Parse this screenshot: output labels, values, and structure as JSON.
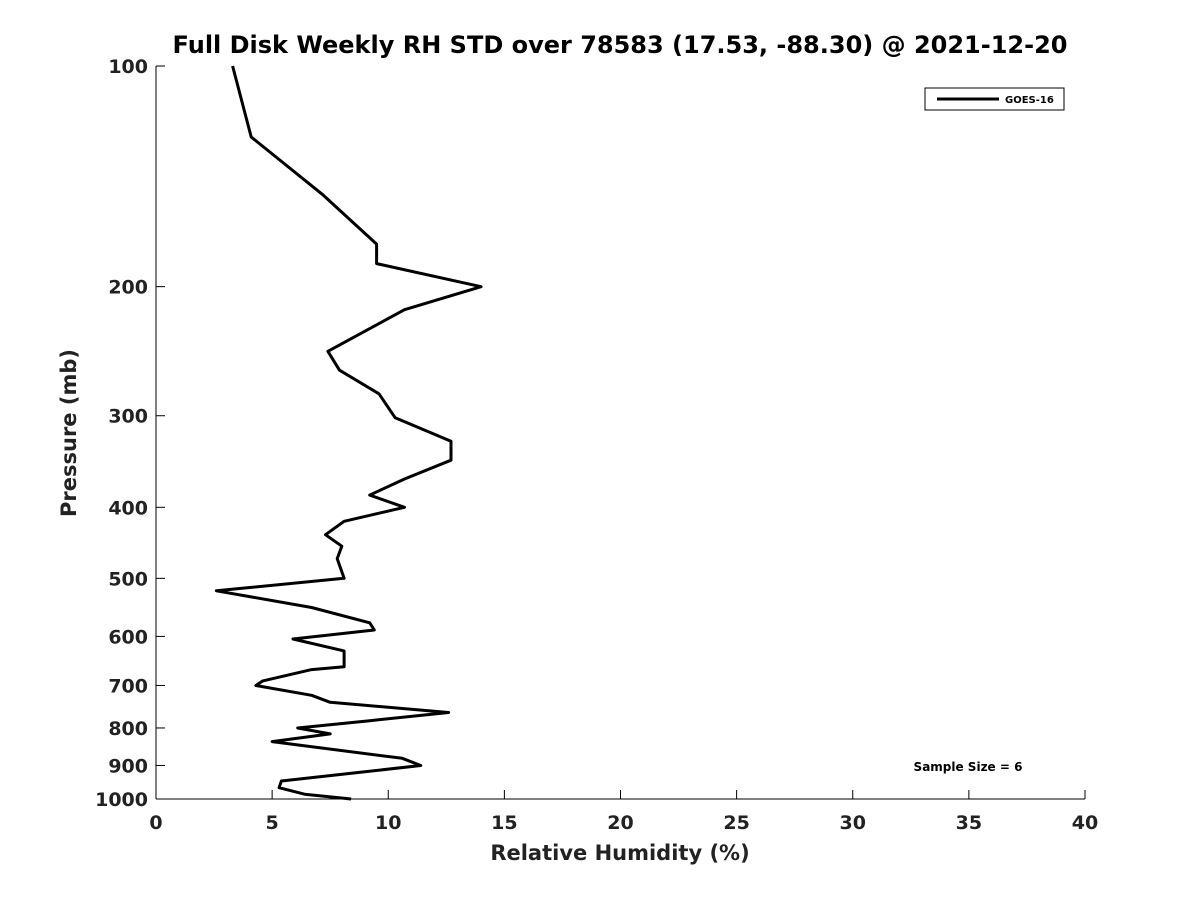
{
  "chart_data": {
    "type": "line",
    "title": "Full Disk Weekly RH STD over 78583 (17.53, -88.30) @ 2021-12-20",
    "xlabel": "Relative Humidity (%)",
    "ylabel": "Pressure (mb)",
    "xlim": [
      0,
      40
    ],
    "ylim": [
      100,
      1000
    ],
    "y_scale": "log",
    "y_reversed": true,
    "grid": false,
    "legend_position": "top-right",
    "x_ticks": [
      "0",
      "5",
      "10",
      "15",
      "20",
      "25",
      "30",
      "35",
      "40"
    ],
    "y_ticks": [
      "100",
      "200",
      "300",
      "400",
      "500",
      "600",
      "700",
      "800",
      "900",
      "1000"
    ],
    "annotation": "Sample Size = 6",
    "series": [
      {
        "name": "GOES-16",
        "color": "#000000",
        "points": [
          [
            3.3,
            100
          ],
          [
            4.1,
            125
          ],
          [
            7.2,
            150
          ],
          [
            9.5,
            175
          ],
          [
            9.5,
            186
          ],
          [
            14.0,
            200
          ],
          [
            10.7,
            215
          ],
          [
            7.4,
            245
          ],
          [
            7.9,
            260
          ],
          [
            9.6,
            280
          ],
          [
            10.3,
            302
          ],
          [
            12.7,
            325
          ],
          [
            12.7,
            345
          ],
          [
            10.7,
            366
          ],
          [
            9.2,
            385
          ],
          [
            10.7,
            400
          ],
          [
            8.1,
            418
          ],
          [
            7.3,
            436
          ],
          [
            8.0,
            452
          ],
          [
            7.8,
            470
          ],
          [
            8.1,
            500
          ],
          [
            2.6,
            520
          ],
          [
            6.7,
            548
          ],
          [
            9.2,
            575
          ],
          [
            9.4,
            588
          ],
          [
            5.9,
            605
          ],
          [
            8.1,
            628
          ],
          [
            8.1,
            660
          ],
          [
            6.7,
            666
          ],
          [
            4.6,
            690
          ],
          [
            4.3,
            700
          ],
          [
            6.7,
            722
          ],
          [
            7.5,
            738
          ],
          [
            12.6,
            762
          ],
          [
            9.2,
            782
          ],
          [
            6.1,
            800
          ],
          [
            7.5,
            815
          ],
          [
            5.0,
            835
          ],
          [
            10.6,
            880
          ],
          [
            11.4,
            900
          ],
          [
            8.7,
            920
          ],
          [
            5.4,
            945
          ],
          [
            5.3,
            965
          ],
          [
            6.4,
            985
          ],
          [
            8.4,
            1000
          ]
        ]
      }
    ]
  }
}
